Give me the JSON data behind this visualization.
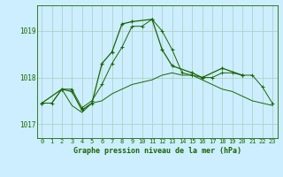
{
  "title": "Graphe pression niveau de la mer (hPa)",
  "bg_color": "#cceeff",
  "grid_color": "#aaccbb",
  "line_color": "#1a6600",
  "xlim": [
    -0.5,
    23.5
  ],
  "ylim": [
    1016.7,
    1019.55
  ],
  "yticks": [
    1017,
    1018,
    1019
  ],
  "xticks": [
    0,
    1,
    2,
    3,
    4,
    5,
    6,
    7,
    8,
    9,
    10,
    11,
    12,
    13,
    14,
    15,
    16,
    17,
    18,
    19,
    20,
    21,
    22,
    23
  ],
  "series1": [
    1017.45,
    1017.45,
    1017.75,
    1017.75,
    1017.35,
    1017.5,
    1017.85,
    1018.3,
    1018.65,
    1019.1,
    1019.1,
    1019.25,
    1019.0,
    1018.6,
    1018.1,
    1018.05,
    1018.0,
    1018.0,
    1018.1,
    1018.1,
    1018.05,
    1018.05,
    1017.8,
    1017.45
  ],
  "series2": [
    1017.45,
    1017.45,
    1017.75,
    1017.4,
    1017.25,
    1017.45,
    1017.5,
    1017.65,
    1017.75,
    1017.85,
    1017.9,
    1017.95,
    1018.05,
    1018.1,
    1018.05,
    1018.05,
    1017.95,
    1017.85,
    1017.75,
    1017.7,
    1017.6,
    1017.5,
    1017.45,
    1017.4
  ],
  "series3_x": [
    0,
    2,
    3,
    4,
    5,
    6,
    7,
    8,
    9,
    11,
    12,
    13,
    15,
    16,
    18,
    20
  ],
  "series3_y": [
    1017.45,
    1017.75,
    1017.7,
    1017.3,
    1017.45,
    1018.3,
    1018.55,
    1019.15,
    1019.2,
    1019.25,
    1018.6,
    1018.25,
    1018.1,
    1018.0,
    1018.2,
    1018.05
  ]
}
